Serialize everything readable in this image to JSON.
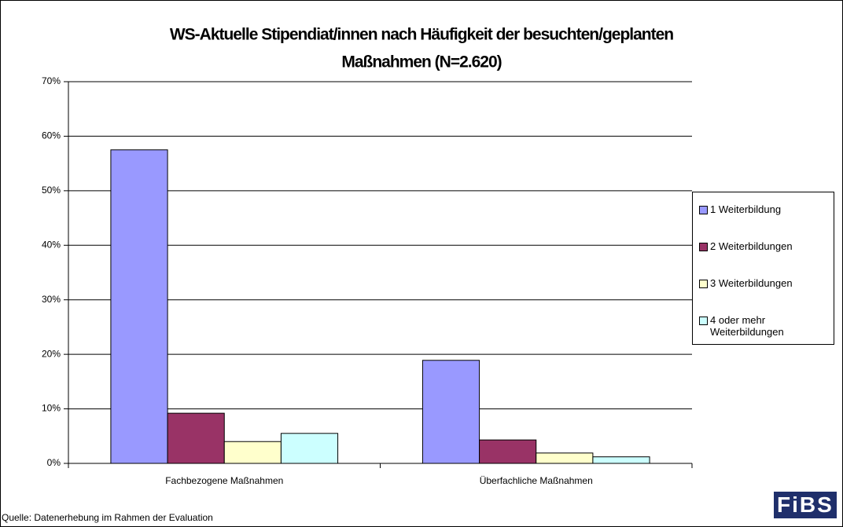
{
  "chart_data": {
    "type": "bar",
    "title": [
      "WS-Aktuelle Stipendiat/innen nach Häufigkeit der besuchten/geplanten",
      "Maßnahmen (N=2.620)"
    ],
    "categories": [
      "Fachbezogene Maßnahmen",
      "Überfachliche Maßnahmen"
    ],
    "series": [
      {
        "name": "1 Weiterbildung",
        "color": "#9999ff",
        "values": [
          57.5,
          18.9
        ]
      },
      {
        "name": "2 Weiterbildungen",
        "color": "#993366",
        "values": [
          9.2,
          4.3
        ]
      },
      {
        "name": "3 Weiterbildungen",
        "color": "#ffffcc",
        "values": [
          4.0,
          1.9
        ]
      },
      {
        "name": "4 oder mehr Weiterbildungen",
        "color": "#ccffff",
        "values": [
          5.5,
          1.2
        ]
      }
    ],
    "ylim": [
      0,
      70
    ],
    "yticks": [
      {
        "value": 0,
        "label": "0%"
      },
      {
        "value": 10,
        "label": "10%"
      },
      {
        "value": 20,
        "label": "20%"
      },
      {
        "value": 30,
        "label": "30%"
      },
      {
        "value": 40,
        "label": "40%"
      },
      {
        "value": 50,
        "label": "50%"
      },
      {
        "value": 60,
        "label": "60%"
      },
      {
        "value": 70,
        "label": "70%"
      }
    ],
    "grid": true,
    "legend": "right",
    "source": "Quelle: Datenerhebung im Rahmen der Evaluation",
    "logo": "FiBS"
  }
}
